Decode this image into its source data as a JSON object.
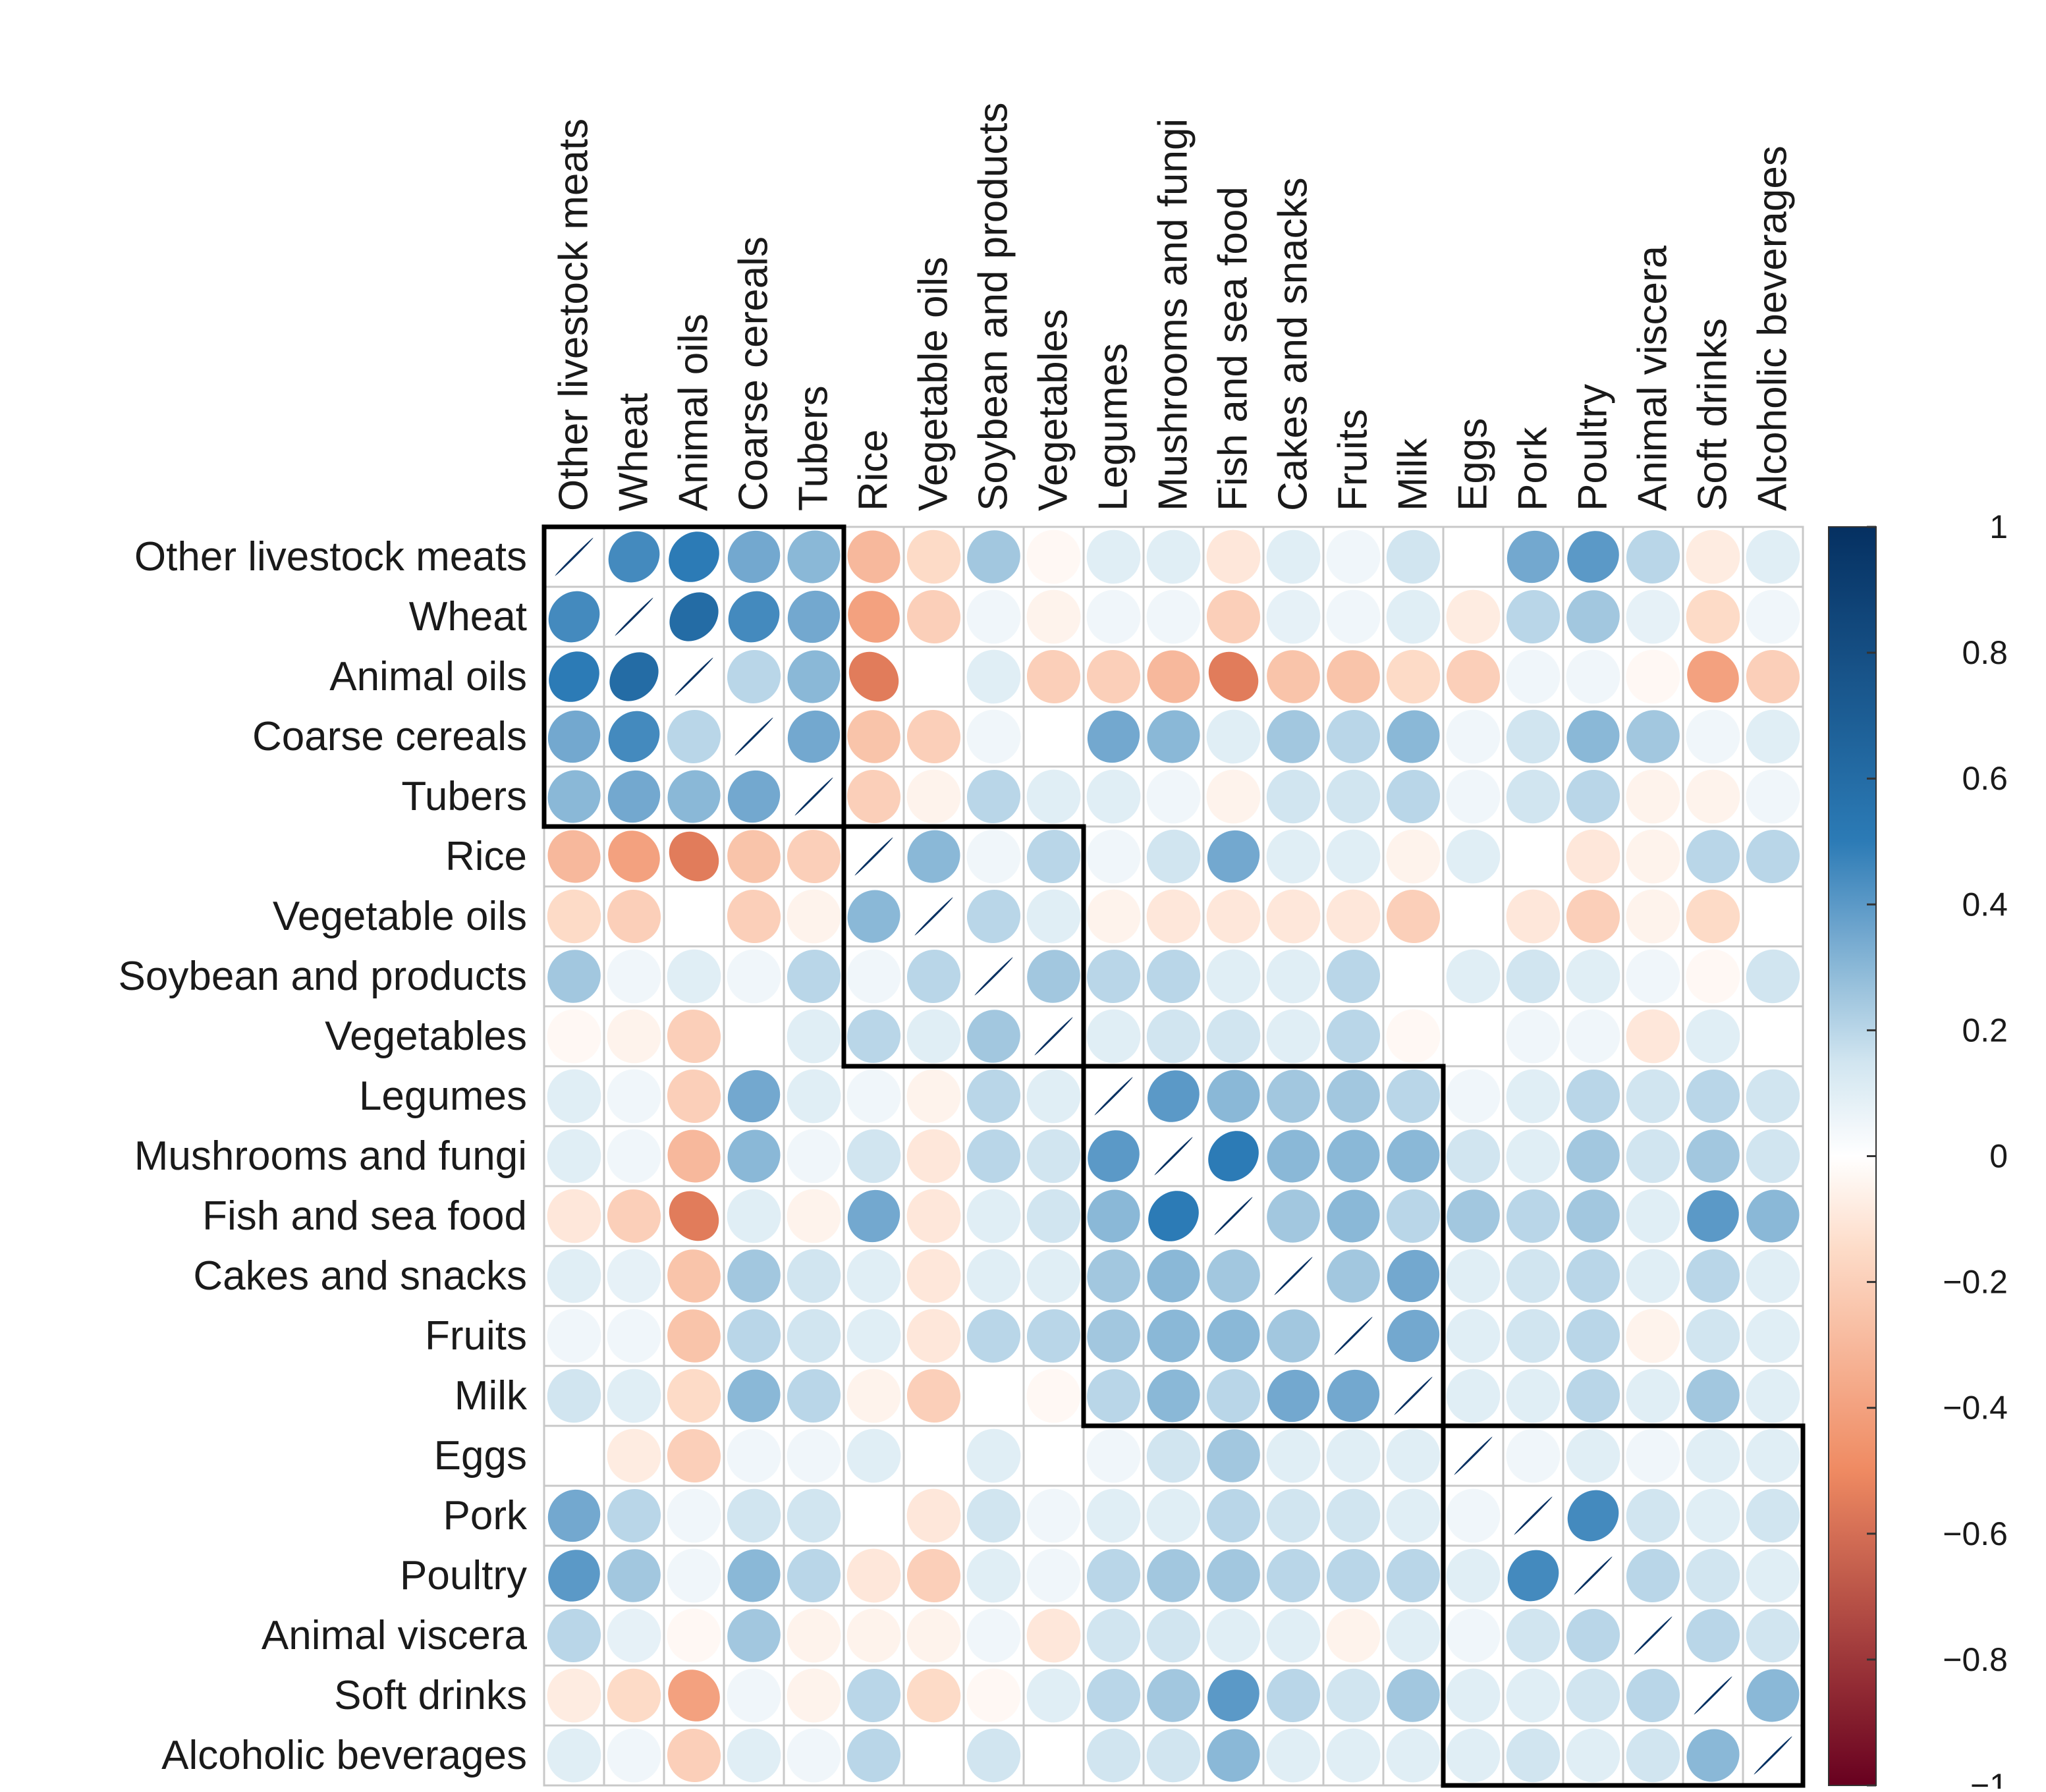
{
  "chart_data": {
    "type": "heatmap",
    "subtype": "correlation-ellipse",
    "title": "",
    "variables": [
      "Other livestock meats",
      "Wheat",
      "Animal oils",
      "Coarse cereals",
      "Tubers",
      "Rice",
      "Vegetable oils",
      "Soybean and products",
      "Vegetables",
      "Legumes",
      "Mushrooms and fungi",
      "Fish and sea food",
      "Cakes and snacks",
      "Fruits",
      "Milk",
      "Eggs",
      "Pork",
      "Poultry",
      "Animal viscera",
      "Soft drinks",
      "Alcoholic beverages"
    ],
    "matrix": [
      [
        1.0,
        0.45,
        0.5,
        0.35,
        0.3,
        -0.3,
        -0.15,
        0.25,
        -0.03,
        0.1,
        0.1,
        -0.1,
        0.1,
        0.05,
        0.15,
        0.0,
        0.35,
        0.4,
        0.2,
        -0.08,
        0.1
      ],
      [
        0.45,
        1.0,
        0.6,
        0.45,
        0.35,
        -0.4,
        -0.2,
        0.05,
        -0.05,
        0.05,
        0.05,
        -0.2,
        0.08,
        0.05,
        0.1,
        -0.08,
        0.2,
        0.25,
        0.08,
        -0.15,
        0.05
      ],
      [
        0.5,
        0.6,
        1.0,
        0.2,
        0.3,
        -0.55,
        0.0,
        0.1,
        -0.2,
        -0.2,
        -0.3,
        -0.55,
        -0.25,
        -0.25,
        -0.15,
        -0.2,
        0.05,
        0.05,
        -0.03,
        -0.4,
        -0.2
      ],
      [
        0.35,
        0.45,
        0.2,
        1.0,
        0.35,
        -0.25,
        -0.2,
        0.05,
        0.0,
        0.35,
        0.3,
        0.1,
        0.25,
        0.2,
        0.3,
        0.05,
        0.15,
        0.3,
        0.25,
        0.05,
        0.1
      ],
      [
        0.3,
        0.35,
        0.3,
        0.35,
        1.0,
        -0.2,
        -0.05,
        0.2,
        0.1,
        0.1,
        0.05,
        -0.05,
        0.15,
        0.15,
        0.2,
        0.05,
        0.15,
        0.2,
        -0.05,
        -0.05,
        0.05
      ],
      [
        -0.3,
        -0.4,
        -0.55,
        -0.25,
        -0.2,
        1.0,
        0.3,
        0.05,
        0.2,
        0.05,
        0.15,
        0.35,
        0.1,
        0.1,
        -0.05,
        0.1,
        0.0,
        -0.1,
        -0.05,
        0.2,
        0.2
      ],
      [
        -0.15,
        -0.2,
        0.0,
        -0.2,
        -0.05,
        0.3,
        1.0,
        0.2,
        0.1,
        -0.05,
        -0.1,
        -0.1,
        -0.1,
        -0.1,
        -0.2,
        0.0,
        -0.1,
        -0.2,
        -0.05,
        -0.15,
        0.0
      ],
      [
        0.25,
        0.05,
        0.1,
        0.05,
        0.2,
        0.05,
        0.2,
        1.0,
        0.25,
        0.2,
        0.2,
        0.1,
        0.1,
        0.2,
        0.0,
        0.1,
        0.15,
        0.1,
        0.05,
        -0.03,
        0.15
      ],
      [
        -0.03,
        -0.05,
        -0.2,
        0.0,
        0.1,
        0.2,
        0.1,
        0.25,
        1.0,
        0.1,
        0.15,
        0.15,
        0.1,
        0.2,
        -0.03,
        0.0,
        0.05,
        0.05,
        -0.1,
        0.1,
        0.0
      ],
      [
        0.1,
        0.05,
        -0.2,
        0.35,
        0.1,
        0.05,
        -0.05,
        0.2,
        0.1,
        1.0,
        0.4,
        0.3,
        0.25,
        0.25,
        0.2,
        0.05,
        0.1,
        0.2,
        0.15,
        0.2,
        0.15
      ],
      [
        0.1,
        0.05,
        -0.3,
        0.3,
        0.05,
        0.15,
        -0.1,
        0.2,
        0.15,
        0.4,
        1.0,
        0.5,
        0.3,
        0.3,
        0.3,
        0.15,
        0.1,
        0.25,
        0.15,
        0.25,
        0.15
      ],
      [
        -0.1,
        -0.2,
        -0.55,
        0.1,
        -0.05,
        0.35,
        -0.1,
        0.1,
        0.15,
        0.3,
        0.5,
        1.0,
        0.25,
        0.3,
        0.2,
        0.25,
        0.2,
        0.25,
        0.1,
        0.4,
        0.3
      ],
      [
        0.1,
        0.08,
        -0.25,
        0.25,
        0.15,
        0.1,
        -0.1,
        0.1,
        0.1,
        0.25,
        0.3,
        0.25,
        1.0,
        0.25,
        0.35,
        0.1,
        0.15,
        0.2,
        0.1,
        0.2,
        0.1
      ],
      [
        0.05,
        0.05,
        -0.25,
        0.2,
        0.15,
        0.1,
        -0.1,
        0.2,
        0.2,
        0.25,
        0.3,
        0.3,
        0.25,
        1.0,
        0.35,
        0.1,
        0.15,
        0.2,
        -0.05,
        0.15,
        0.1
      ],
      [
        0.15,
        0.1,
        -0.15,
        0.3,
        0.2,
        -0.05,
        -0.2,
        0.0,
        -0.03,
        0.2,
        0.3,
        0.2,
        0.35,
        0.35,
        1.0,
        0.1,
        0.1,
        0.2,
        0.1,
        0.25,
        0.1
      ],
      [
        0.0,
        -0.08,
        -0.2,
        0.05,
        0.05,
        0.1,
        0.0,
        0.1,
        0.0,
        0.05,
        0.15,
        0.25,
        0.1,
        0.1,
        0.1,
        1.0,
        0.05,
        0.1,
        0.05,
        0.1,
        0.1
      ],
      [
        0.35,
        0.2,
        0.05,
        0.15,
        0.15,
        0.0,
        -0.1,
        0.15,
        0.05,
        0.1,
        0.1,
        0.2,
        0.15,
        0.15,
        0.1,
        0.05,
        1.0,
        0.45,
        0.15,
        0.1,
        0.15
      ],
      [
        0.4,
        0.25,
        0.05,
        0.3,
        0.2,
        -0.1,
        -0.2,
        0.1,
        0.05,
        0.2,
        0.25,
        0.25,
        0.2,
        0.2,
        0.2,
        0.1,
        0.45,
        1.0,
        0.2,
        0.15,
        0.1
      ],
      [
        0.2,
        0.08,
        -0.03,
        0.25,
        -0.05,
        -0.05,
        -0.05,
        0.05,
        -0.1,
        0.15,
        0.15,
        0.1,
        0.1,
        -0.05,
        0.1,
        0.05,
        0.15,
        0.2,
        1.0,
        0.2,
        0.15
      ],
      [
        -0.08,
        -0.15,
        -0.4,
        0.05,
        -0.05,
        0.2,
        -0.15,
        -0.03,
        0.1,
        0.2,
        0.25,
        0.4,
        0.2,
        0.15,
        0.25,
        0.1,
        0.1,
        0.15,
        0.2,
        1.0,
        0.3
      ],
      [
        0.1,
        0.05,
        -0.2,
        0.1,
        0.05,
        0.2,
        0.0,
        0.15,
        0.0,
        0.15,
        0.15,
        0.3,
        0.1,
        0.1,
        0.1,
        0.1,
        0.15,
        0.1,
        0.15,
        0.3,
        1.0
      ]
    ],
    "clusters": [
      [
        0,
        4
      ],
      [
        5,
        8
      ],
      [
        9,
        14
      ],
      [
        15,
        20
      ]
    ],
    "legend": {
      "position": "right",
      "range": [
        -1,
        1
      ],
      "ticks": [
        1,
        0.8,
        0.6,
        0.4,
        0.2,
        0,
        -0.2,
        -0.4,
        -0.6,
        -0.8,
        -1
      ],
      "tick_labels": [
        "1",
        "0.8",
        "0.6",
        "0.4",
        "0.2",
        "0",
        "−0.2",
        "−0.4",
        "−0.6",
        "−0.8",
        "−1"
      ]
    },
    "colors": {
      "positive_strong": "#053061",
      "positive_mid": "#2c7bb6",
      "neutral": "#ffffff",
      "negative_mid": "#ef8a62",
      "negative_strong": "#67001f",
      "grid": "#c8c8c8",
      "cluster_border": "#000000"
    }
  }
}
